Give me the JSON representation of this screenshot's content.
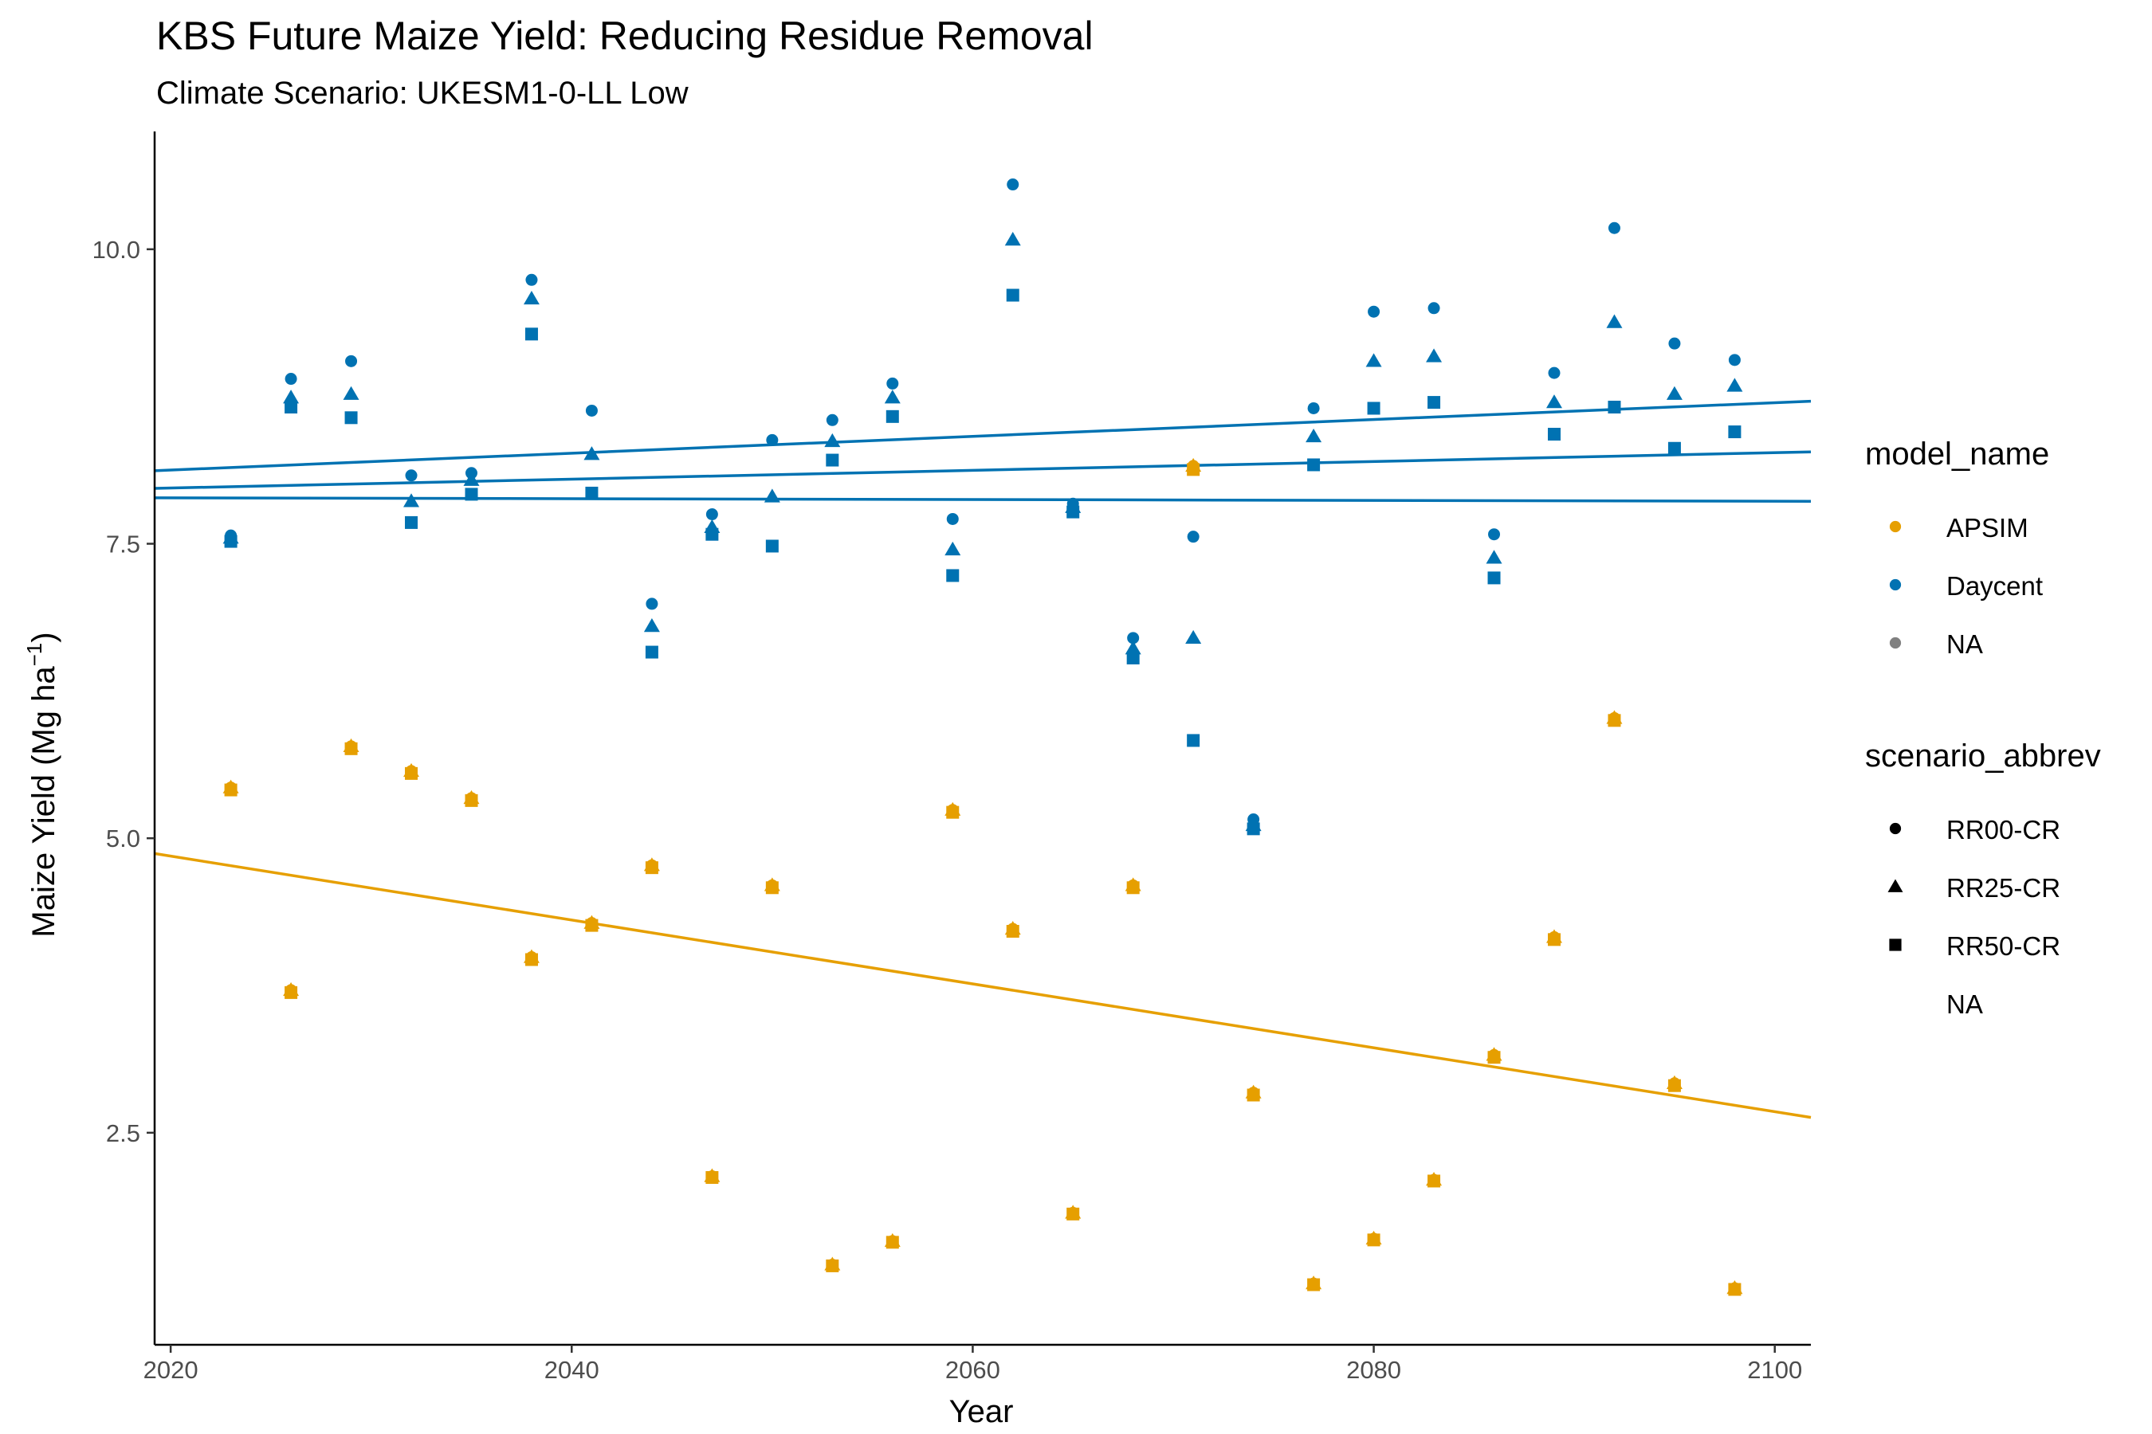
{
  "chart_data": {
    "type": "scatter",
    "title": "KBS Future Maize Yield: Reducing Residue Removal",
    "subtitle": "Climate Scenario: UKESM1-0-LL Low",
    "xlabel": "Year",
    "ylabel": "Maize Yield (Mg ha",
    "ylabel_unit_superscript": "−1",
    "ylabel_suffix": ")",
    "xlim": [
      2019.2,
      2101.8
    ],
    "ylim": [
      0.7,
      11.0
    ],
    "x_ticks": [
      2020,
      2040,
      2060,
      2080,
      2100
    ],
    "x_tick_labels": [
      "2020",
      "2040",
      "2060",
      "2080",
      "2100"
    ],
    "y_ticks": [
      2.5,
      5.0,
      7.5,
      10.0
    ],
    "y_tick_labels": [
      "2.5",
      "5.0",
      "7.5",
      "10.0"
    ],
    "grid": false,
    "legend_position": "right",
    "colors": {
      "APSIM": "#E69F00",
      "Daycent": "#0072B2",
      "NA": "#808080"
    },
    "legends": [
      {
        "title": "model_name",
        "items": [
          {
            "label": "APSIM",
            "color": "#E69F00",
            "shape": "circle"
          },
          {
            "label": "Daycent",
            "color": "#0072B2",
            "shape": "circle"
          },
          {
            "label": "NA",
            "color": "#808080",
            "shape": "circle"
          }
        ]
      },
      {
        "title": "scenario_abbrev",
        "items": [
          {
            "label": "RR00-CR",
            "color": "#000000",
            "shape": "circle"
          },
          {
            "label": "RR25-CR",
            "color": "#000000",
            "shape": "triangle"
          },
          {
            "label": "RR50-CR",
            "color": "#000000",
            "shape": "square"
          },
          {
            "label": "NA",
            "color": "#000000",
            "shape": "none"
          }
        ]
      }
    ],
    "series": [
      {
        "model": "Daycent",
        "scenario": "RR00-CR",
        "shape": "circle",
        "color": "#0072B2",
        "x": [
          2023,
          2026,
          2029,
          2032,
          2035,
          2038,
          2041,
          2044,
          2047,
          2050,
          2053,
          2056,
          2059,
          2062,
          2065,
          2068,
          2071,
          2074,
          2077,
          2080,
          2083,
          2086,
          2089,
          2092,
          2095,
          2098
        ],
        "y": [
          7.57,
          8.9,
          9.05,
          8.08,
          8.1,
          9.74,
          8.63,
          6.99,
          7.75,
          8.38,
          8.55,
          8.86,
          7.71,
          10.55,
          7.84,
          6.7,
          7.56,
          5.16,
          8.65,
          9.47,
          9.5,
          7.58,
          8.95,
          10.18,
          9.2,
          9.06
        ]
      },
      {
        "model": "Daycent",
        "scenario": "RR25-CR",
        "shape": "triangle",
        "color": "#0072B2",
        "x": [
          2023,
          2026,
          2029,
          2032,
          2035,
          2038,
          2041,
          2044,
          2047,
          2050,
          2053,
          2056,
          2059,
          2062,
          2065,
          2068,
          2071,
          2074,
          2077,
          2080,
          2083,
          2086,
          2089,
          2092,
          2095,
          2098
        ],
        "y": [
          7.55,
          8.74,
          8.77,
          7.86,
          8.04,
          9.58,
          8.26,
          6.8,
          7.64,
          7.9,
          8.37,
          8.74,
          7.45,
          10.08,
          7.81,
          6.61,
          6.7,
          5.11,
          8.41,
          9.05,
          9.09,
          7.38,
          8.7,
          9.38,
          8.77,
          8.84
        ]
      },
      {
        "model": "Daycent",
        "scenario": "RR50-CR",
        "shape": "square",
        "color": "#0072B2",
        "x": [
          2023,
          2026,
          2029,
          2032,
          2035,
          2038,
          2041,
          2044,
          2047,
          2050,
          2053,
          2056,
          2059,
          2062,
          2065,
          2068,
          2071,
          2074,
          2077,
          2080,
          2083,
          2086,
          2089,
          2092,
          2095,
          2098
        ],
        "y": [
          7.52,
          8.66,
          8.57,
          7.68,
          7.92,
          9.28,
          7.93,
          6.58,
          7.58,
          7.48,
          8.21,
          8.58,
          7.23,
          9.61,
          7.77,
          6.53,
          5.83,
          5.08,
          8.17,
          8.65,
          8.7,
          7.21,
          8.43,
          8.66,
          8.31,
          8.45
        ]
      },
      {
        "model": "APSIM",
        "scenario": "RR00-CR",
        "shape": "circle",
        "color": "#E69F00",
        "x": [
          2023,
          2026,
          2029,
          2032,
          2035,
          2038,
          2041,
          2044,
          2047,
          2050,
          2053,
          2056,
          2059,
          2062,
          2065,
          2068,
          2071,
          2074,
          2077,
          2080,
          2083,
          2086,
          2089,
          2092,
          2095,
          2098
        ],
        "y": [
          5.43,
          3.71,
          5.78,
          5.57,
          5.34,
          3.99,
          4.28,
          4.77,
          2.13,
          4.6,
          1.38,
          1.58,
          5.24,
          4.23,
          1.82,
          4.6,
          8.16,
          2.84,
          1.22,
          1.6,
          2.1,
          3.16,
          4.16,
          6.02,
          2.92,
          1.18
        ]
      },
      {
        "model": "APSIM",
        "scenario": "RR25-CR",
        "shape": "triangle",
        "color": "#E69F00",
        "x": [
          2023,
          2026,
          2029,
          2032,
          2035,
          2038,
          2041,
          2044,
          2047,
          2050,
          2053,
          2056,
          2059,
          2062,
          2065,
          2068,
          2071,
          2074,
          2077,
          2080,
          2083,
          2086,
          2089,
          2092,
          2095,
          2098
        ],
        "y": [
          5.43,
          3.71,
          5.78,
          5.57,
          5.34,
          3.99,
          4.28,
          4.77,
          2.13,
          4.6,
          1.38,
          1.58,
          5.24,
          4.23,
          1.82,
          4.6,
          8.16,
          2.84,
          1.22,
          1.6,
          2.1,
          3.16,
          4.16,
          6.02,
          2.92,
          1.18
        ]
      },
      {
        "model": "APSIM",
        "scenario": "RR50-CR",
        "shape": "square",
        "color": "#E69F00",
        "x": [
          2023,
          2026,
          2029,
          2032,
          2035,
          2038,
          2041,
          2044,
          2047,
          2050,
          2053,
          2056,
          2059,
          2062,
          2065,
          2068,
          2071,
          2074,
          2077,
          2080,
          2083,
          2086,
          2089,
          2092,
          2095,
          2098
        ],
        "y": [
          5.41,
          3.69,
          5.76,
          5.55,
          5.32,
          3.97,
          4.26,
          4.75,
          2.12,
          4.58,
          1.37,
          1.57,
          5.22,
          4.21,
          1.81,
          4.58,
          8.13,
          2.82,
          1.21,
          1.59,
          2.09,
          3.14,
          4.14,
          6.0,
          2.9,
          1.17
        ]
      }
    ],
    "trend_lines": [
      {
        "model": "Daycent",
        "scenario": "RR00-CR",
        "color": "#0072B2",
        "x": [
          2019.2,
          2101.8
        ],
        "y": [
          8.12,
          8.71
        ]
      },
      {
        "model": "Daycent",
        "scenario": "RR25-CR",
        "color": "#0072B2",
        "x": [
          2019.2,
          2101.8
        ],
        "y": [
          7.97,
          8.28
        ]
      },
      {
        "model": "Daycent",
        "scenario": "RR50-CR",
        "color": "#0072B2",
        "x": [
          2019.2,
          2101.8
        ],
        "y": [
          7.89,
          7.86
        ]
      },
      {
        "model": "APSIM",
        "scenario": "all",
        "color": "#E69F00",
        "x": [
          2019.2,
          2101.8
        ],
        "y": [
          4.87,
          2.63
        ]
      }
    ]
  }
}
